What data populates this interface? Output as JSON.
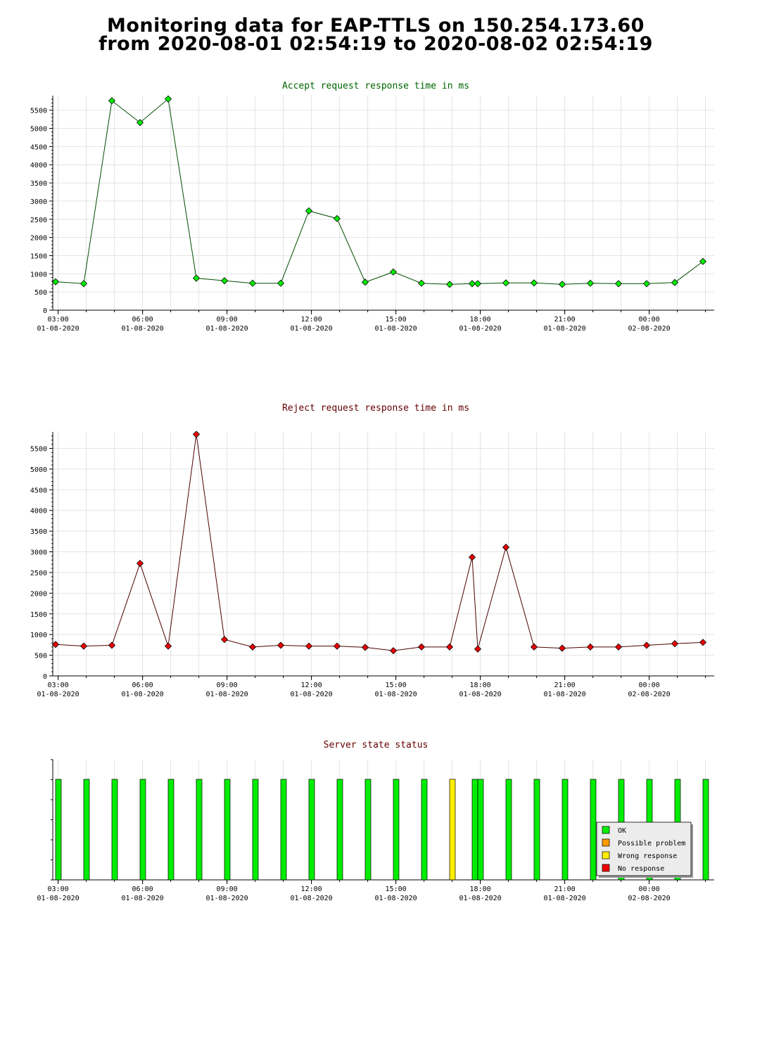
{
  "title": {
    "line1": "Monitoring data for EAP-TTLS on 150.254.173.60",
    "line2": "from 2020-08-01 02:54:19 to 2020-08-02 02:54:19"
  },
  "colors": {
    "accept_series": "#00ee00",
    "reject_series": "#ee0000",
    "accept_title": "#006400",
    "reject_title": "#640000",
    "status_title": "#640000",
    "status_ok": "#00ee00",
    "status_possible_problem": "#ff9900",
    "status_wrong_response": "#ffee00",
    "status_no_response": "#ee0000"
  },
  "x_axis": {
    "ticks": [
      {
        "t": 0.09,
        "time": "03:00",
        "date": "01-08-2020"
      },
      {
        "t": 3.09,
        "time": "06:00",
        "date": "01-08-2020"
      },
      {
        "t": 6.09,
        "time": "09:00",
        "date": "01-08-2020"
      },
      {
        "t": 9.09,
        "time": "12:00",
        "date": "01-08-2020"
      },
      {
        "t": 12.09,
        "time": "15:00",
        "date": "01-08-2020"
      },
      {
        "t": 15.09,
        "time": "18:00",
        "date": "01-08-2020"
      },
      {
        "t": 18.09,
        "time": "21:00",
        "date": "01-08-2020"
      },
      {
        "t": 21.09,
        "time": "00:00",
        "date": "02-08-2020"
      }
    ]
  },
  "chart_data": [
    {
      "type": "line",
      "title": "Accept request response time in ms",
      "xlabel": "",
      "ylabel": "",
      "x_unit": "hours since 02:54:19 2020-08-01",
      "xlim": [
        0,
        23.5
      ],
      "ylim": [
        0,
        5900
      ],
      "yticks": [
        0,
        500,
        1000,
        1500,
        2000,
        2500,
        3000,
        3500,
        4000,
        4500,
        5000,
        5500
      ],
      "grid": true,
      "series": [
        {
          "name": "",
          "x": [
            0,
            1,
            2,
            3,
            4,
            5,
            6,
            7,
            8,
            9,
            10,
            11,
            12,
            13,
            14,
            14.8,
            15,
            16,
            17,
            18,
            19,
            20,
            21,
            22,
            23
          ],
          "values": [
            780,
            730,
            5760,
            5160,
            5810,
            880,
            810,
            740,
            740,
            2730,
            2520,
            770,
            1050,
            740,
            710,
            730,
            730,
            750,
            750,
            710,
            740,
            730,
            730,
            760,
            1340
          ]
        }
      ]
    },
    {
      "type": "line",
      "title": "Reject request response time in ms",
      "xlabel": "",
      "ylabel": "",
      "x_unit": "hours since 02:54:19 2020-08-01",
      "xlim": [
        0,
        23.5
      ],
      "ylim": [
        0,
        5900
      ],
      "yticks": [
        0,
        500,
        1000,
        1500,
        2000,
        2500,
        3000,
        3500,
        4000,
        4500,
        5000,
        5500
      ],
      "grid": true,
      "series": [
        {
          "name": "",
          "x": [
            0,
            1,
            2,
            3,
            4,
            5,
            6,
            7,
            8,
            9,
            10,
            11,
            12,
            13,
            14,
            14.8,
            15,
            16,
            17,
            18,
            19,
            20,
            21,
            22,
            23
          ],
          "values": [
            760,
            720,
            740,
            2720,
            720,
            5840,
            880,
            700,
            740,
            720,
            720,
            690,
            610,
            700,
            700,
            2870,
            650,
            3110,
            700,
            670,
            700,
            700,
            740,
            780,
            810
          ]
        }
      ]
    },
    {
      "type": "bar",
      "title": "Server state status",
      "x_unit": "hours since 02:54:19 2020-08-01",
      "xlim": [
        0,
        23.5
      ],
      "legend_position": "bottom-right",
      "legend": [
        "OK",
        "Possible problem",
        "Wrong response",
        "No response"
      ],
      "x": [
        0,
        1,
        2,
        3,
        4,
        5,
        6,
        7,
        8,
        9,
        10,
        11,
        12,
        13,
        14,
        14.8,
        15,
        16,
        17,
        18,
        19,
        20,
        21,
        22,
        23
      ],
      "states": [
        "OK",
        "OK",
        "OK",
        "OK",
        "OK",
        "OK",
        "OK",
        "OK",
        "OK",
        "OK",
        "OK",
        "OK",
        "OK",
        "OK",
        "Wrong response",
        "OK",
        "OK",
        "OK",
        "OK",
        "OK",
        "OK",
        "OK",
        "OK",
        "OK",
        "OK"
      ]
    }
  ]
}
